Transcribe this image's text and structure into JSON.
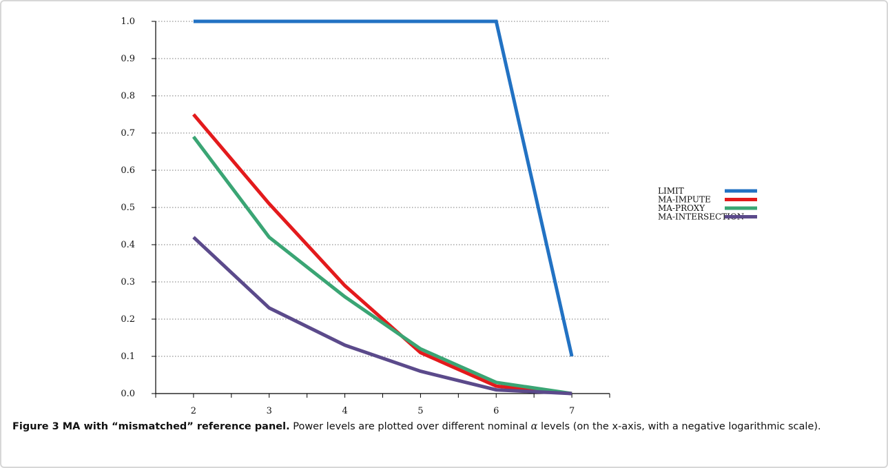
{
  "chart_data": {
    "type": "line",
    "x": [
      2,
      3,
      4,
      5,
      6,
      7
    ],
    "xlim": [
      1.5,
      7.5
    ],
    "ylim": [
      0.0,
      1.0
    ],
    "xticks": [
      "2",
      "3",
      "4",
      "5",
      "6",
      "7"
    ],
    "yticks": [
      "0.0",
      "0.1",
      "0.2",
      "0.3",
      "0.4",
      "0.5",
      "0.6",
      "0.7",
      "0.8",
      "0.9",
      "1.0"
    ],
    "grid": "horizontal-dotted",
    "legend_position": "right",
    "series": [
      {
        "name": "LIMIT",
        "color": "#2272c3",
        "values": [
          1.0,
          1.0,
          1.0,
          1.0,
          1.0,
          0.1
        ]
      },
      {
        "name": "MA-IMPUTE",
        "color": "#e31a1c",
        "values": [
          0.75,
          0.51,
          0.29,
          0.11,
          0.02,
          0.0
        ]
      },
      {
        "name": "MA-PROXY",
        "color": "#3aa574",
        "values": [
          0.69,
          0.42,
          0.26,
          0.12,
          0.03,
          0.0
        ]
      },
      {
        "name": "MA-INTERSECTION",
        "color": "#5b4a8b",
        "values": [
          0.42,
          0.23,
          0.13,
          0.06,
          0.01,
          0.0
        ]
      }
    ]
  },
  "caption": {
    "title": "Figure 3 MA with “mismatched” reference panel.",
    "text_before_alpha": " Power levels are plotted over different nominal ",
    "alpha_symbol": "α",
    "text_after_alpha": " levels (on the x-axis, with a negative logarithmic scale)."
  }
}
